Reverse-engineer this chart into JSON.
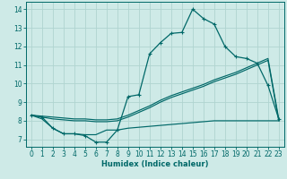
{
  "xlabel": "Humidex (Indice chaleur)",
  "background_color": "#ceeae7",
  "grid_color": "#b0d4d0",
  "line_color": "#006868",
  "xlim": [
    -0.5,
    23.5
  ],
  "ylim": [
    6.6,
    14.4
  ],
  "xticks": [
    0,
    1,
    2,
    3,
    4,
    5,
    6,
    7,
    8,
    9,
    10,
    11,
    12,
    13,
    14,
    15,
    16,
    17,
    18,
    19,
    20,
    21,
    22,
    23
  ],
  "yticks": [
    7,
    8,
    9,
    10,
    11,
    12,
    13,
    14
  ],
  "series1_x": [
    0,
    1,
    2,
    3,
    4,
    5,
    6,
    7,
    8,
    9,
    10,
    11,
    12,
    13,
    14,
    15,
    16,
    17,
    18,
    19,
    20,
    21,
    22,
    23
  ],
  "series1_y": [
    8.3,
    8.2,
    7.6,
    7.3,
    7.3,
    7.2,
    6.85,
    6.85,
    7.5,
    9.3,
    9.4,
    11.6,
    12.2,
    12.7,
    12.75,
    14.0,
    13.5,
    13.2,
    12.0,
    11.45,
    11.35,
    11.1,
    9.9,
    8.1
  ],
  "series2_x": [
    0,
    1,
    2,
    3,
    4,
    5,
    6,
    7,
    8,
    9,
    10,
    11,
    12,
    13,
    14,
    15,
    16,
    17,
    18,
    19,
    20,
    21,
    22,
    23
  ],
  "series2_y": [
    8.3,
    8.25,
    8.2,
    8.15,
    8.1,
    8.1,
    8.05,
    8.05,
    8.1,
    8.3,
    8.55,
    8.8,
    9.1,
    9.35,
    9.55,
    9.75,
    9.95,
    10.2,
    10.4,
    10.6,
    10.85,
    11.1,
    11.35,
    8.1
  ],
  "series3_x": [
    0,
    1,
    2,
    3,
    4,
    5,
    6,
    7,
    8,
    9,
    10,
    11,
    12,
    13,
    14,
    15,
    16,
    17,
    18,
    19,
    20,
    21,
    22,
    23
  ],
  "series3_y": [
    8.3,
    8.2,
    8.1,
    8.05,
    8.0,
    8.0,
    7.95,
    7.95,
    8.0,
    8.2,
    8.45,
    8.7,
    9.0,
    9.25,
    9.45,
    9.65,
    9.85,
    10.1,
    10.3,
    10.5,
    10.75,
    11.0,
    11.25,
    8.0
  ],
  "series4_x": [
    0,
    1,
    2,
    3,
    4,
    5,
    6,
    7,
    8,
    9,
    10,
    11,
    12,
    13,
    14,
    15,
    16,
    17,
    18,
    19,
    20,
    21,
    22,
    23
  ],
  "series4_y": [
    8.3,
    8.1,
    7.6,
    7.3,
    7.3,
    7.25,
    7.25,
    7.5,
    7.5,
    7.6,
    7.65,
    7.7,
    7.75,
    7.8,
    7.85,
    7.9,
    7.95,
    8.0,
    8.0,
    8.0,
    8.0,
    8.0,
    8.0,
    8.0
  ]
}
